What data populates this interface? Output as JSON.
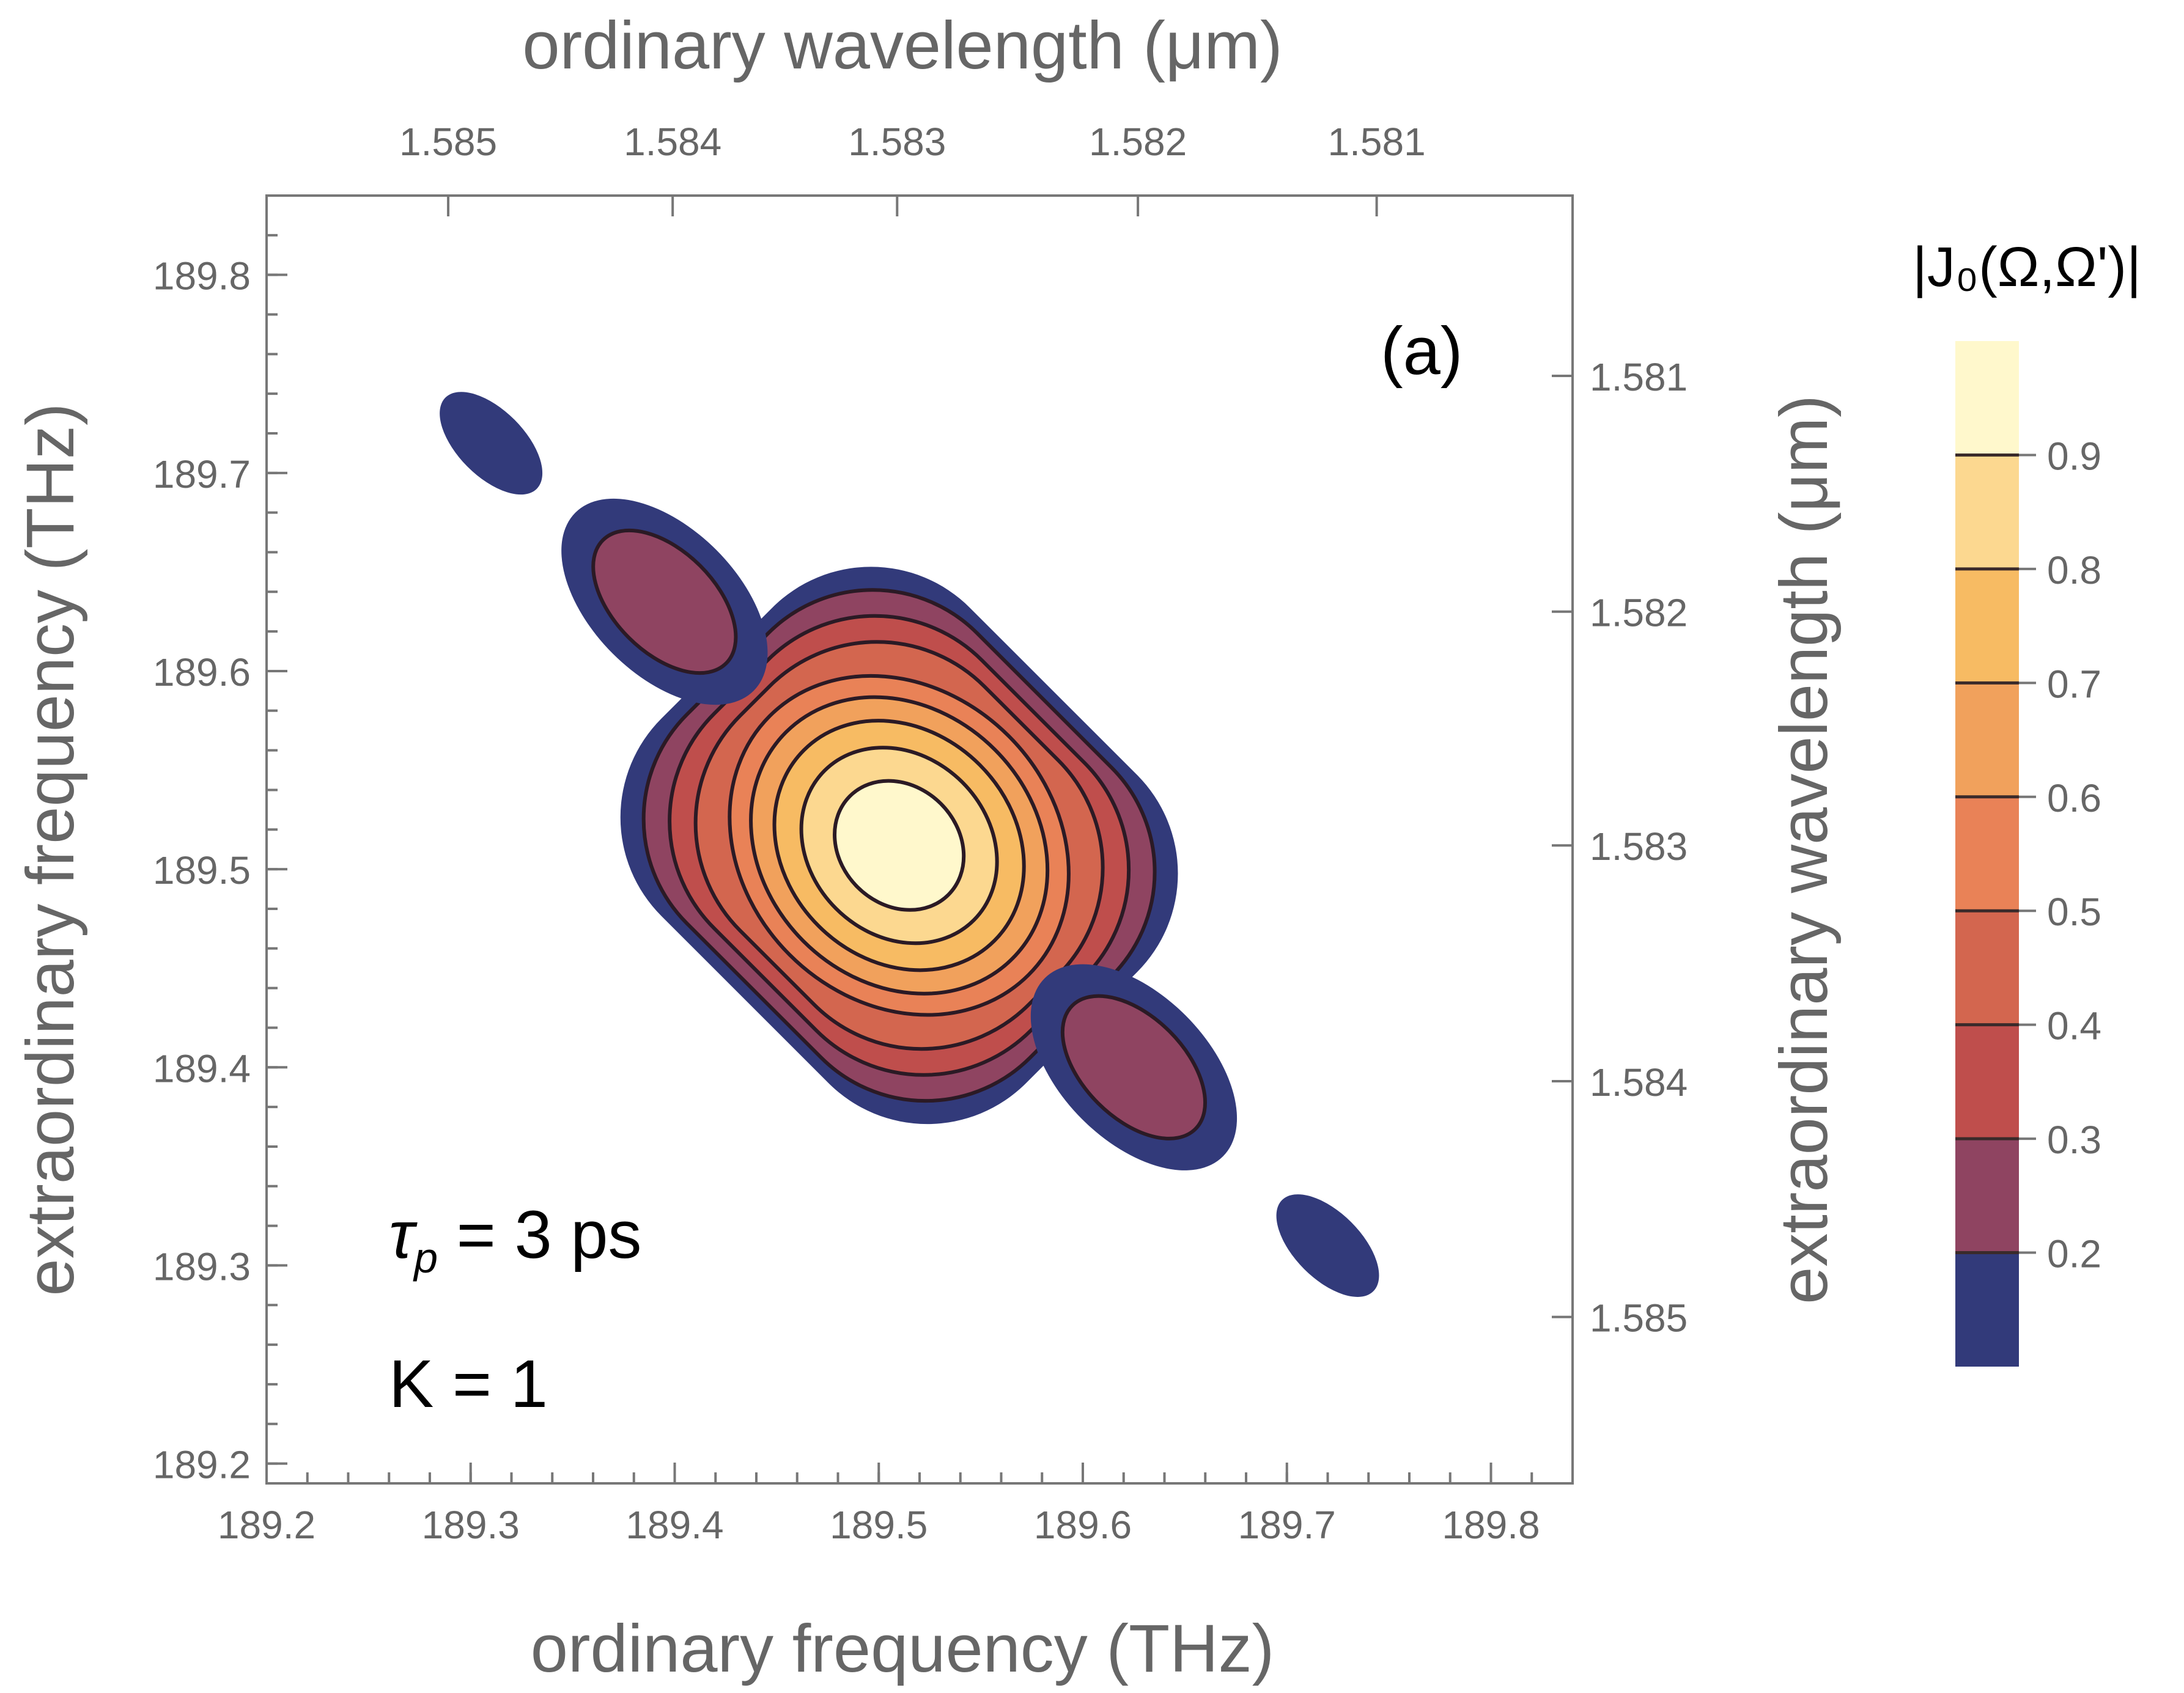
{
  "chart_data": {
    "type": "contour",
    "title": "",
    "xlabel": "ordinary frequency (THz)",
    "ylabel": "extraordinary frequency (THz)",
    "x2label": "ordinary wavelength (μm)",
    "y2label": "extraordinary wavelength (μm)",
    "xlim": [
      189.2,
      189.84
    ],
    "ylim": [
      189.19,
      189.84
    ],
    "xticks": [
      "189.2",
      "189.3",
      "189.4",
      "189.5",
      "189.6",
      "189.7",
      "189.8"
    ],
    "yticks": [
      "189.2",
      "189.3",
      "189.4",
      "189.5",
      "189.6",
      "189.7",
      "189.8"
    ],
    "x2ticks": [
      {
        "label": "1.585",
        "freq": 189.289
      },
      {
        "label": "1.584",
        "freq": 189.399
      },
      {
        "label": "1.583",
        "freq": 189.509
      },
      {
        "label": "1.582",
        "freq": 189.627
      },
      {
        "label": "1.581",
        "freq": 189.744
      }
    ],
    "y2ticks": [
      {
        "label": "1.581",
        "freq": 189.749
      },
      {
        "label": "1.582",
        "freq": 189.63
      },
      {
        "label": "1.583",
        "freq": 189.512
      },
      {
        "label": "1.584",
        "freq": 189.393
      },
      {
        "label": "1.585",
        "freq": 189.274
      }
    ],
    "colorbar": {
      "title": "|J₀(Ω,Ω')|",
      "levels": [
        0.2,
        0.3,
        0.4,
        0.5,
        0.6,
        0.7,
        0.8,
        0.9
      ],
      "labels": [
        "0.2",
        "0.3",
        "0.4",
        "0.5",
        "0.6",
        "0.7",
        "0.8",
        "0.9"
      ],
      "range": [
        0.1,
        1.0
      ],
      "colors": [
        "#323a7a",
        "#8f4461",
        "#bf4e4c",
        "#d3664f",
        "#e98257",
        "#f1a15c",
        "#f7bb63",
        "#fcd890",
        "#fff8cc"
      ]
    },
    "lobes": [
      {
        "name": "center",
        "x": 189.51,
        "y": 189.512,
        "peak": 1.0,
        "rx": 0.115,
        "ry": 0.14
      },
      {
        "name": "upper-inner",
        "x": 189.395,
        "y": 189.635,
        "peak": 0.3,
        "rx": 0.048,
        "ry": 0.085
      },
      {
        "name": "lower-inner",
        "x": 189.625,
        "y": 189.4,
        "peak": 0.3,
        "rx": 0.048,
        "ry": 0.085
      },
      {
        "name": "upper-outer",
        "x": 189.31,
        "y": 189.715,
        "peak": 0.18,
        "rx": 0.03,
        "ry": 0.06
      },
      {
        "name": "lower-outer",
        "x": 189.72,
        "y": 189.31,
        "peak": 0.18,
        "rx": 0.03,
        "ry": 0.06
      }
    ]
  },
  "annotations": {
    "panel_label": "(a)",
    "tau_symbol": "τ",
    "tau_subscript": "p",
    "tau_value": " = 3 ps",
    "k_text": "K = 1"
  }
}
